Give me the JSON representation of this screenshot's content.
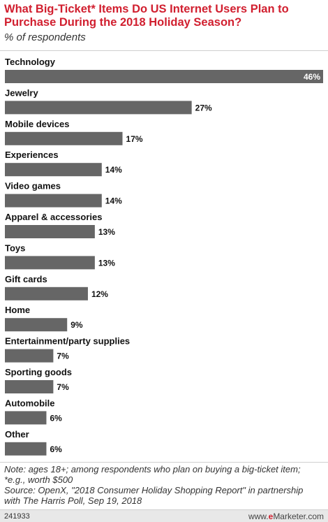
{
  "title": "What Big-Ticket* Items Do US Internet Users Plan to Purchase During the 2018 Holiday Season?",
  "subtitle": "% of respondents",
  "chart_data": {
    "type": "bar",
    "orientation": "horizontal",
    "categories": [
      "Technology",
      "Jewelry",
      "Mobile devices",
      "Experiences",
      "Video games",
      "Apparel & accessories",
      "Toys",
      "Gift cards",
      "Home",
      "Entertainment/party supplies",
      "Sporting goods",
      "Automobile",
      "Other"
    ],
    "values": [
      46,
      27,
      17,
      14,
      14,
      13,
      13,
      12,
      9,
      7,
      7,
      6,
      6
    ],
    "value_labels": [
      "46%",
      "27%",
      "17%",
      "14%",
      "14%",
      "13%",
      "13%",
      "12%",
      "9%",
      "7%",
      "7%",
      "6%",
      "6%"
    ],
    "xlim": [
      0,
      46
    ],
    "bar_color": "#666666",
    "grid": false
  },
  "notes": [
    "Note: ages 18+; among respondents who plan on buying a big-ticket item;",
    "*e.g., worth $500",
    "Source: OpenX, \"2018 Consumer Holiday Shopping Report\" in partnership",
    "with The Harris Poll, Sep 19, 2018"
  ],
  "footer": {
    "id": "241933",
    "brand_prefix": "www.",
    "brand_e": "e",
    "brand_rest": "Marketer.com"
  },
  "colors": {
    "title": "#d11f2f",
    "bar": "#666666",
    "footer_bg": "#e8e8e8"
  }
}
